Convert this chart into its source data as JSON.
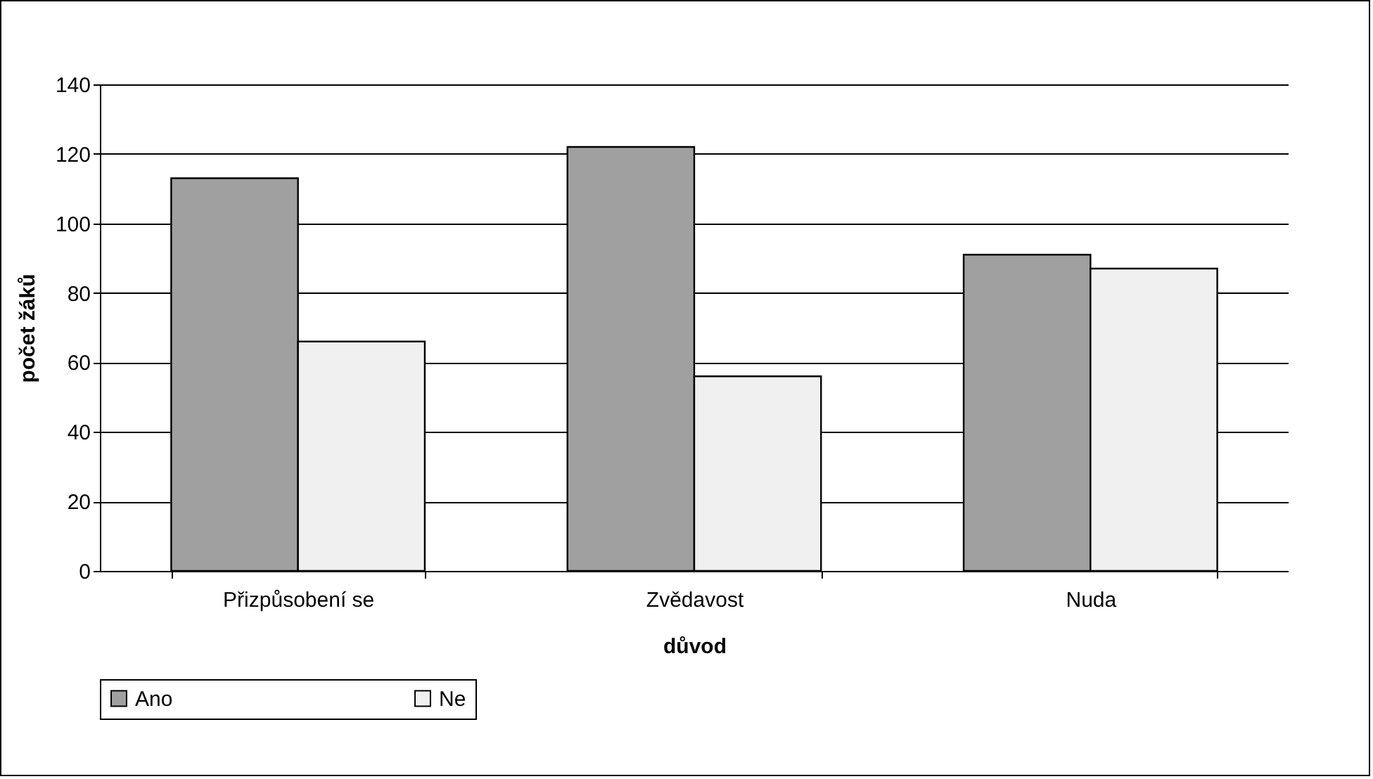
{
  "chart_data": {
    "type": "bar",
    "xlabel": "důvod",
    "ylabel": "počet žáků",
    "categories": [
      "Přizpůsobení se",
      "Zvědavost",
      "Nuda"
    ],
    "series": [
      {
        "name": "Ano",
        "color": "#a0a0a0",
        "values": [
          113,
          122,
          91
        ]
      },
      {
        "name": "Ne",
        "color": "#f0f0f0",
        "values": [
          66,
          56,
          87
        ]
      }
    ],
    "ylim": [
      0,
      140
    ],
    "yticks": [
      0,
      20,
      40,
      60,
      80,
      100,
      120,
      140
    ],
    "grid": "y",
    "legend": "bottom"
  }
}
